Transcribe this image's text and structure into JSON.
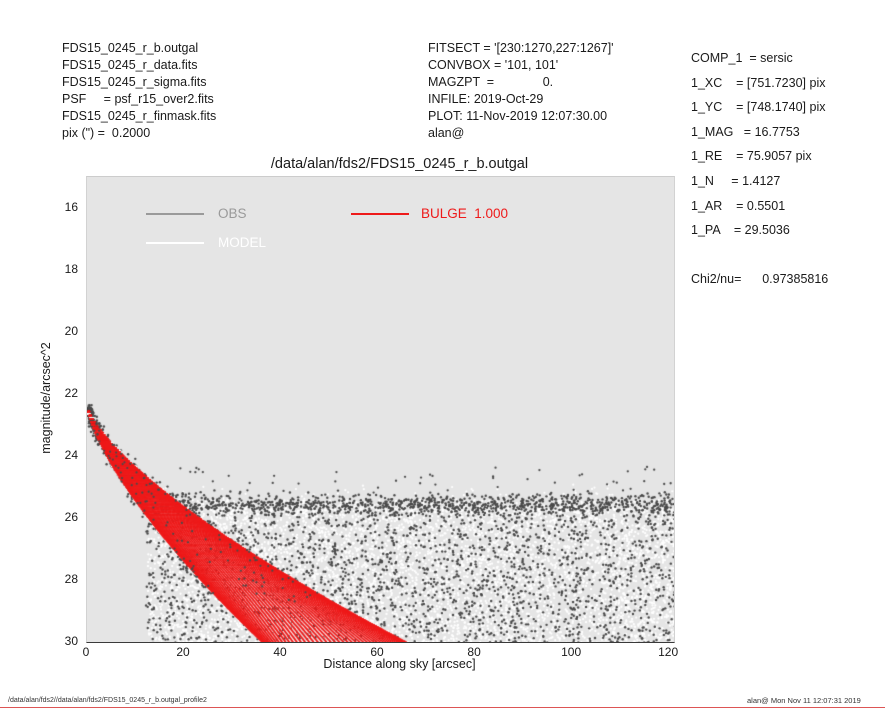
{
  "header": {
    "left_lines": [
      "FDS15_0245_r_b.outgal",
      "FDS15_0245_r_data.fits",
      "FDS15_0245_r_sigma.fits",
      "PSF     = psf_r15_over2.fits",
      "FDS15_0245_r_finmask.fits",
      "pix (\") =  0.2000"
    ],
    "middle_lines": [
      "FITSECT = '[230:1270,227:1267]'",
      "CONVBOX = '101, 101'",
      "MAGZPT  =              0.",
      "INFILE: 2019-Oct-29",
      "PLOT: 11-Nov-2019 12:07:30.00",
      "alan@"
    ],
    "right_lines": [
      "COMP_1  = sersic",
      "1_XC    = [751.7230] pix",
      "1_YC    = [748.1740] pix",
      "1_MAG   = 16.7753",
      "1_RE    = 75.9057 pix",
      "1_N     = 1.4127",
      "1_AR    = 0.5501",
      "1_PA    = 29.5036"
    ],
    "chi2_line": "Chi2/nu=      0.97385816"
  },
  "footer": {
    "path": "/data/alan/fds2//data/alan/fds2/FDS15_0245_r_b.outgal_profile2",
    "timestamp": "alan@  Mon Nov 11 12:07:31 2019"
  },
  "colors": {
    "plot_bg": "#e5e5e5",
    "obs": "#4a4a4a",
    "model": "#ffffff",
    "bulge": "#ee1a1a",
    "legend_obs": "#9a9a9a",
    "bottom_line": "#dd5555"
  },
  "chart_data": {
    "type": "scatter",
    "title": "/data/alan/fds2/FDS15_0245_r_b.outgal",
    "xlabel": "Distance along sky [arcsec]",
    "ylabel": "magnitude/arcsec^2",
    "xlim": [
      0,
      121
    ],
    "ylim": [
      30,
      15
    ],
    "y_axis_inverted": true,
    "x_ticks": [
      0,
      20,
      40,
      60,
      80,
      100,
      120
    ],
    "y_ticks": [
      16,
      18,
      20,
      22,
      24,
      26,
      28,
      30
    ],
    "grid": false,
    "legend_position": "top-left-inside",
    "legend": [
      {
        "label": "OBS",
        "color": "#9a9a9a"
      },
      {
        "label": "MODEL",
        "color": "#ffffff"
      },
      {
        "label": "BULGE  1.000",
        "color": "#ee1a1a"
      }
    ],
    "series_notes": {
      "OBS": "dark grey measured pixel points: scatter flanking the bulge profile at small radii, then a noise cloud of sky pixels between mag ~25.3 and 30 for x ~12-121 arcsec",
      "MODEL": "white model pixel points: dense whitish cloud between mag ~25.6 and 30 for x ~12-121 arcsec plus smooth profile rings under the bulge wedge",
      "BULGE": "red Sersic-component isophote rings forming a wedge from (0, 22.4) fanning to x = 37-68 arcsec at mag 30"
    },
    "bulge_profile": {
      "model": "sersic",
      "mu0": 22.35,
      "coeff": 2.713,
      "re_arcsec": 15.18,
      "inv_n": 0.708,
      "axis_ratio": 0.5501,
      "a_min": 0.45,
      "a_max": 69,
      "rings": 175,
      "theta_samples": 52,
      "upper_edge_samples": [
        [
          0,
          22.4
        ],
        [
          10,
          24.4
        ],
        [
          20,
          25.7
        ],
        [
          30,
          26.7
        ],
        [
          40,
          27.7
        ],
        [
          50,
          28.7
        ],
        [
          60,
          29.5
        ],
        [
          68,
          30.2
        ]
      ],
      "lower_edge_samples": [
        [
          0,
          22.4
        ],
        [
          10,
          25.5
        ],
        [
          20,
          27.4
        ],
        [
          30,
          29.0
        ],
        [
          37.5,
          30.2
        ]
      ]
    },
    "clouds": {
      "model_noise": {
        "n": 6200,
        "x": [
          12.5,
          121.2
        ],
        "y": [
          25.62,
          30.24
        ]
      },
      "model_fringe": {
        "n": 700,
        "x": [
          13,
          121
        ],
        "y": [
          25.42,
          25.8
        ]
      },
      "model_high": {
        "n": 80,
        "x": [
          13,
          121
        ],
        "y": [
          24.9,
          25.65
        ]
      },
      "obs_noise": {
        "n": 2400,
        "x": [
          12,
          121.2
        ],
        "y": [
          25.5,
          30.18
        ]
      },
      "obs_fringe": {
        "n": 950,
        "x": [
          14,
          121
        ],
        "mean": 25.55,
        "sigma": 0.33,
        "min": 24.6
      },
      "obs_high": {
        "n": 60,
        "x": [
          18,
          121
        ],
        "y": [
          24.35,
          25.45
        ]
      },
      "obs_flank": {
        "n": 620,
        "a_max": 42,
        "sigma_mag": 0.3
      },
      "obs_on_bulge": {
        "n": 130,
        "a": [
          2,
          50
        ],
        "sigma_mag": 0.13
      }
    },
    "seed": 42
  }
}
